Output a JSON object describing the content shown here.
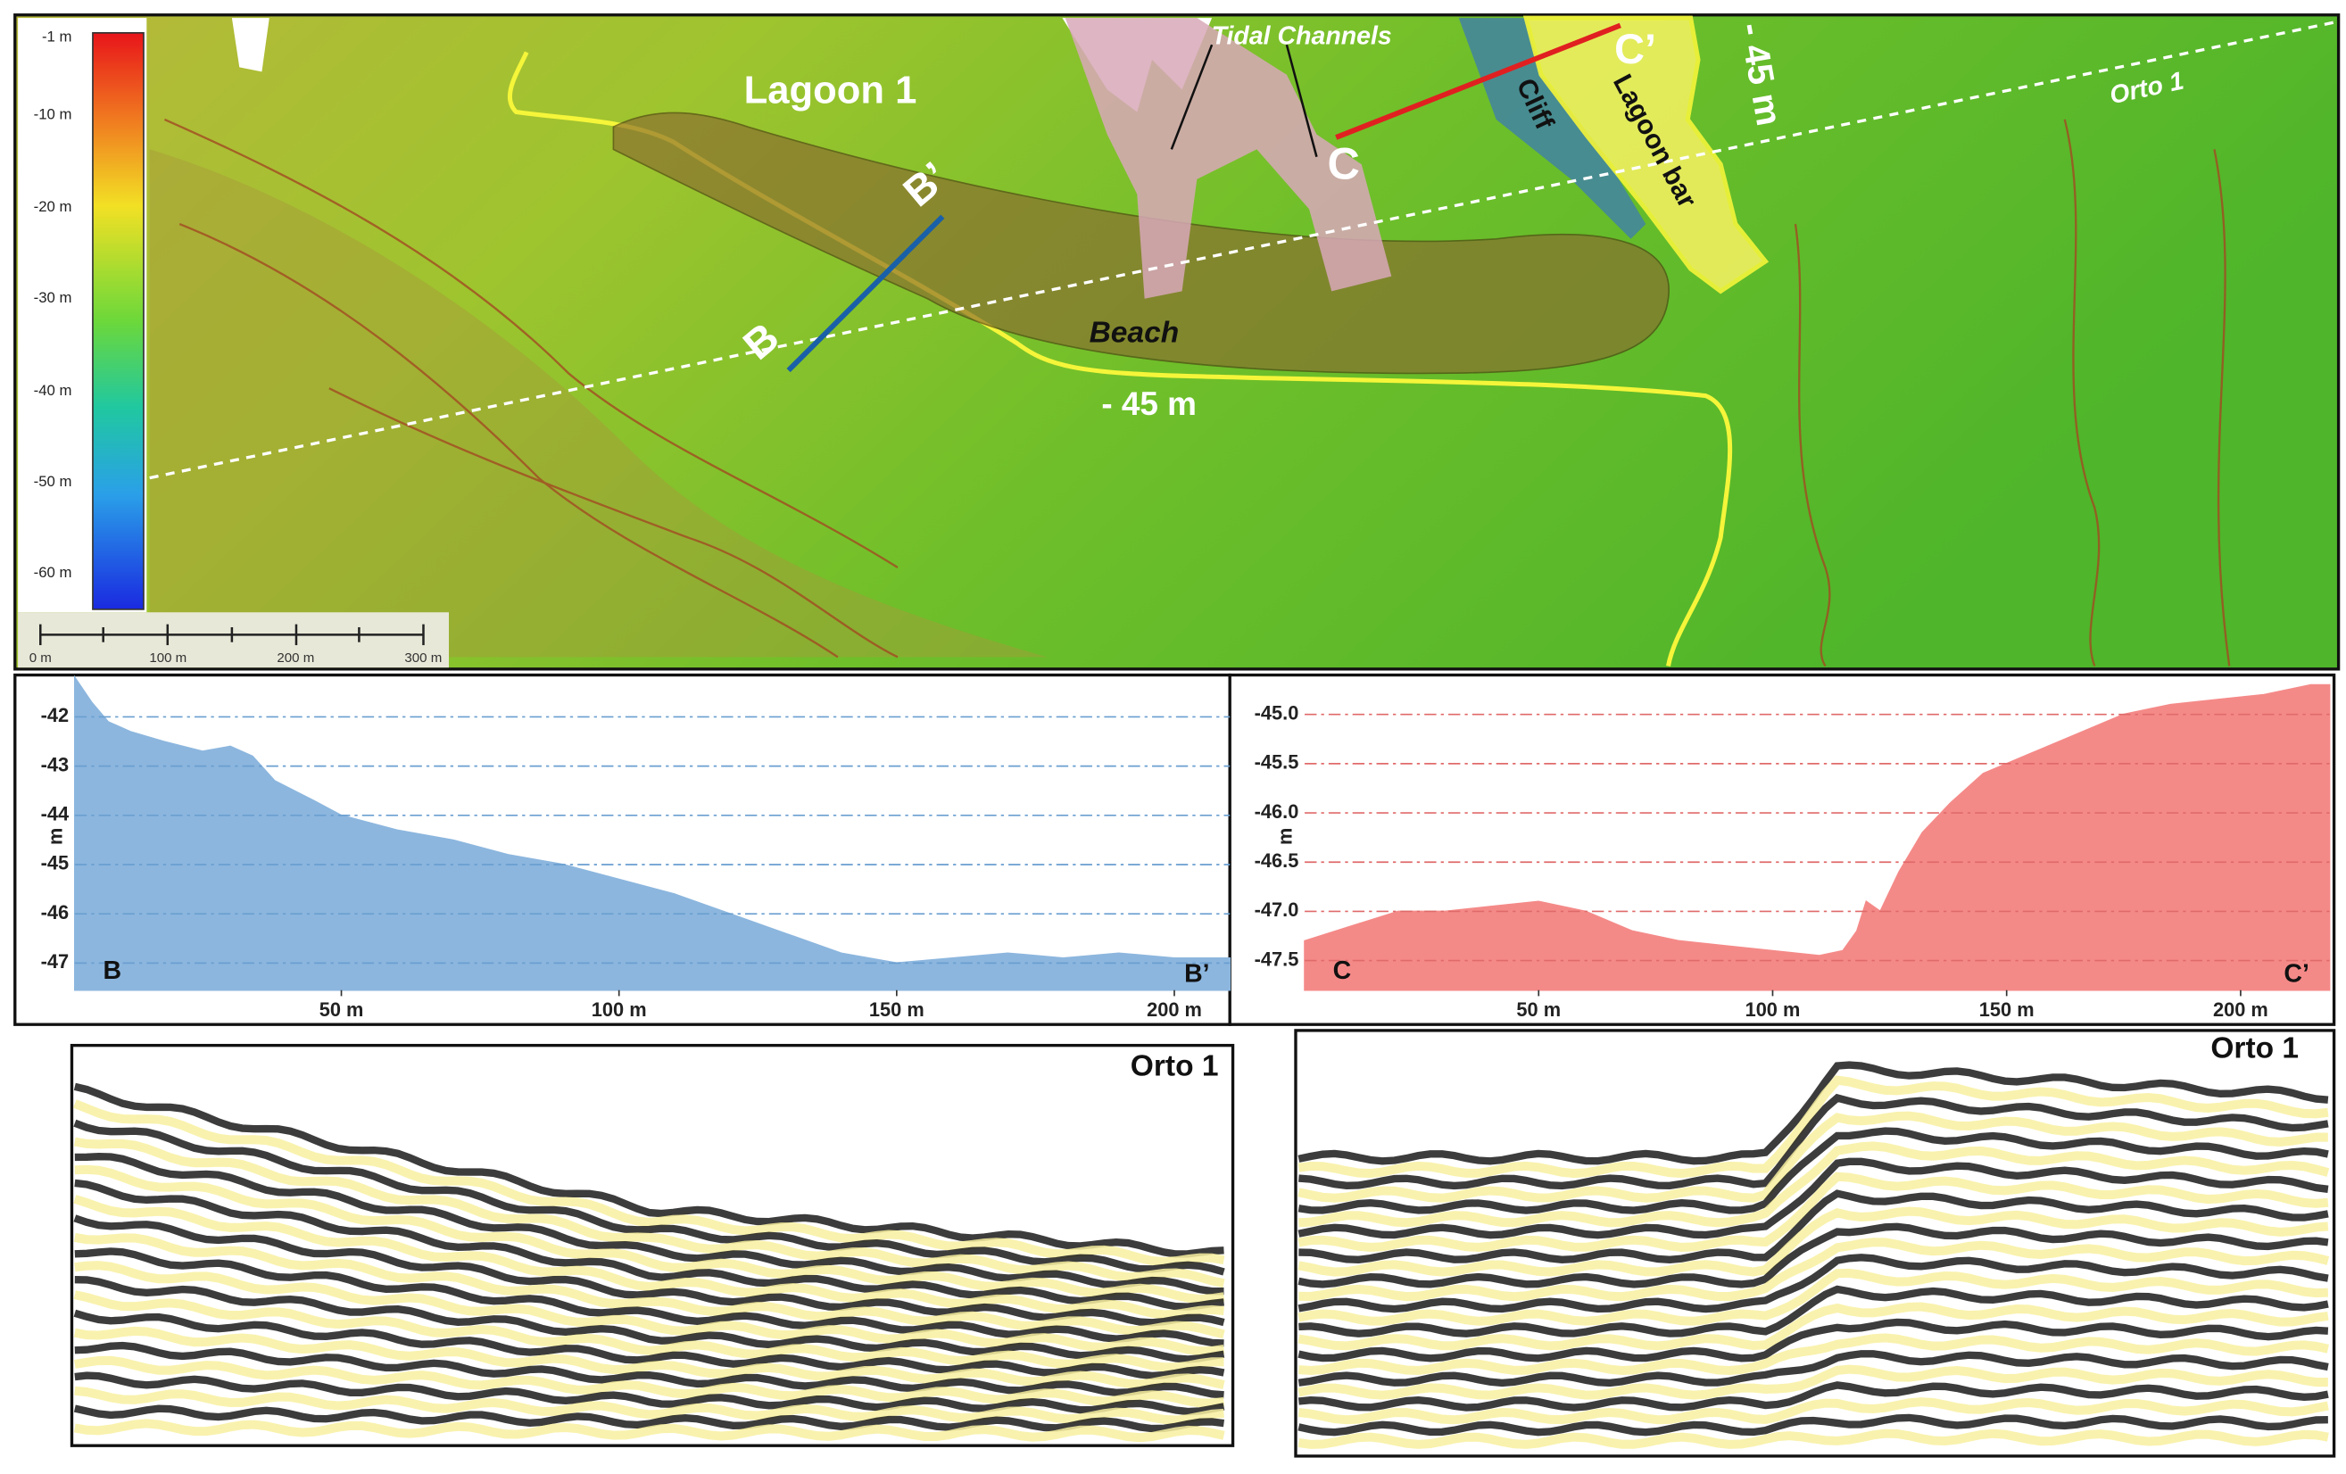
{
  "map": {
    "colorbar_labels": [
      "-1 m",
      "-10 m",
      "-20 m",
      "-30 m",
      "-40 m",
      "-50 m",
      "-60 m"
    ],
    "scale_bar_labels": [
      "0 m",
      "100 m",
      "200 m",
      "300 m"
    ],
    "labels": {
      "lagoon": "Lagoon 1",
      "tidal_channels": "Tidal Channels",
      "c_prime": "C’",
      "contour_top": "- 45 m",
      "orto": "Orto 1",
      "b_prime": "B’",
      "c": "C",
      "cliff": "Cliff",
      "lagoon_bar": "Lagoon bar",
      "beach": "Beach",
      "b": "B",
      "contour_bottom": "- 45 m"
    }
  },
  "chart_data": [
    {
      "type": "area",
      "color": "#8cb6de",
      "grid_color": "#6a9fd0",
      "start_label": "B",
      "end_label": "B’",
      "y_label": "m",
      "grid": true,
      "x": [
        2,
        5,
        8,
        12,
        18,
        25,
        30,
        34,
        38,
        45,
        50,
        60,
        70,
        80,
        90,
        100,
        110,
        120,
        130,
        140,
        150,
        160,
        170,
        180,
        190,
        200,
        210
      ],
      "values": [
        -41.2,
        -41.7,
        -42.1,
        -42.3,
        -42.5,
        -42.7,
        -42.6,
        -42.8,
        -43.3,
        -43.7,
        -44.0,
        -44.3,
        -44.5,
        -44.8,
        -45.0,
        -45.3,
        -45.6,
        -46.0,
        -46.4,
        -46.8,
        -47.0,
        -46.9,
        -46.8,
        -46.9,
        -46.8,
        -46.9,
        -46.9
      ],
      "xlim": [
        2,
        210
      ],
      "ylim": [
        -47.55,
        -41.15
      ],
      "xticks": [
        {
          "value": 50,
          "label": "50 m"
        },
        {
          "value": 100,
          "label": "100 m"
        },
        {
          "value": 150,
          "label": "150 m"
        },
        {
          "value": 200,
          "label": "200 m"
        }
      ],
      "yticks": [
        -42,
        -43,
        -44,
        -45,
        -46,
        -47
      ]
    },
    {
      "type": "area",
      "color": "#f48a88",
      "grid_color": "#e06a6a",
      "start_label": "C",
      "end_label": "C’",
      "y_label": "m",
      "grid": true,
      "x": [
        0,
        10,
        20,
        30,
        40,
        50,
        60,
        70,
        80,
        90,
        100,
        110,
        115,
        118,
        120,
        123,
        127,
        132,
        138,
        145,
        155,
        165,
        175,
        185,
        195,
        205,
        215,
        219
      ],
      "values": [
        -47.3,
        -47.15,
        -47.0,
        -47.0,
        -46.95,
        -46.9,
        -47.0,
        -47.2,
        -47.3,
        -47.35,
        -47.4,
        -47.45,
        -47.4,
        -47.2,
        -46.9,
        -47.0,
        -46.6,
        -46.2,
        -45.9,
        -45.6,
        -45.4,
        -45.2,
        -45.0,
        -44.9,
        -44.85,
        -44.8,
        -44.7,
        -44.7
      ],
      "xlim": [
        0,
        219
      ],
      "ylim": [
        -47.8,
        -44.6
      ],
      "xticks": [
        {
          "value": 50,
          "label": "50 m"
        },
        {
          "value": 100,
          "label": "100 m"
        },
        {
          "value": 150,
          "label": "150 m"
        },
        {
          "value": 200,
          "label": "200 m"
        }
      ],
      "yticks": [
        {
          "value": -45,
          "label": "-45.0"
        },
        -45.5,
        {
          "value": -46,
          "label": "-46.0"
        },
        -46.5,
        {
          "value": -47,
          "label": "-47.0"
        },
        -47.5
      ]
    }
  ],
  "seismic": [
    {
      "label": "Orto 1"
    },
    {
      "label": "Orto 1"
    }
  ]
}
